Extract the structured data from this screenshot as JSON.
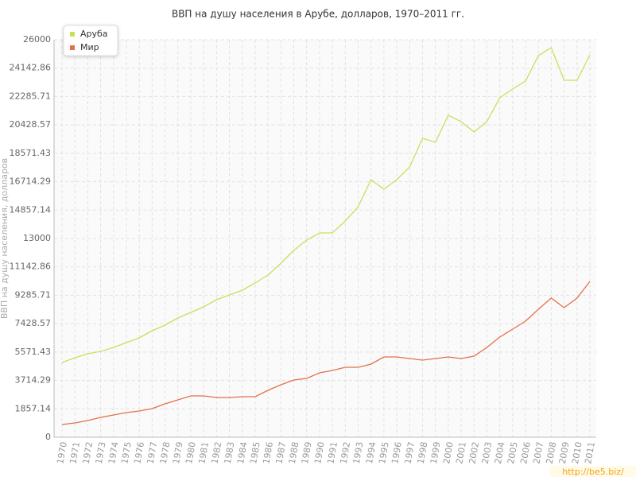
{
  "chart_data": {
    "type": "line",
    "title": "ВВП на душу населения в Арубе, долларов, 1970–2011 гг.",
    "y_label": "ВВП на душу населения, долларов",
    "watermark": "http://be5.biz/",
    "categories": [
      "1970",
      "1971",
      "1972",
      "1973",
      "1974",
      "1975",
      "1976",
      "1977",
      "1978",
      "1979",
      "1980",
      "1981",
      "1982",
      "1983",
      "1984",
      "1985",
      "1986",
      "1987",
      "1988",
      "1989",
      "1990",
      "1991",
      "1992",
      "1993",
      "1994",
      "1995",
      "1996",
      "1997",
      "1998",
      "1999",
      "2000",
      "2001",
      "2002",
      "2003",
      "2004",
      "2005",
      "2006",
      "2007",
      "2008",
      "2009",
      "2010",
      "2011"
    ],
    "series": [
      {
        "name": "Аруба",
        "color": "#c8e05a",
        "values": [
          4888,
          5200,
          5460,
          5616,
          5876,
          6188,
          6500,
          6968,
          7332,
          7800,
          8164,
          8528,
          8996,
          9308,
          9620,
          10088,
          10608,
          11388,
          12220,
          12896,
          13364,
          13364,
          14144,
          15080,
          16848,
          16224,
          16848,
          17680,
          19552,
          19292,
          21060,
          20644,
          19968,
          20644,
          22204,
          22776,
          23296,
          24960,
          25480,
          23348,
          23348,
          25012
        ]
      },
      {
        "name": "Мир",
        "color": "#e2714a",
        "values": [
          832,
          936,
          1092,
          1300,
          1456,
          1612,
          1716,
          1872,
          2184,
          2444,
          2704,
          2704,
          2600,
          2600,
          2652,
          2652,
          3068,
          3432,
          3744,
          3848,
          4212,
          4368,
          4576,
          4576,
          4784,
          5252,
          5252,
          5148,
          5044,
          5148,
          5252,
          5148,
          5304,
          5876,
          6552,
          7072,
          7592,
          8372,
          9100,
          8476,
          9100,
          10192
        ]
      }
    ],
    "ylim": [
      0,
      26000
    ],
    "yticks": [
      0,
      1857.14,
      3714.29,
      5571.43,
      7428.57,
      9285.71,
      11142.86,
      13000,
      14857.14,
      16714.29,
      18571.43,
      20428.57,
      22285.71,
      24142.86,
      26000
    ],
    "grid": true,
    "legend": "top-left"
  }
}
